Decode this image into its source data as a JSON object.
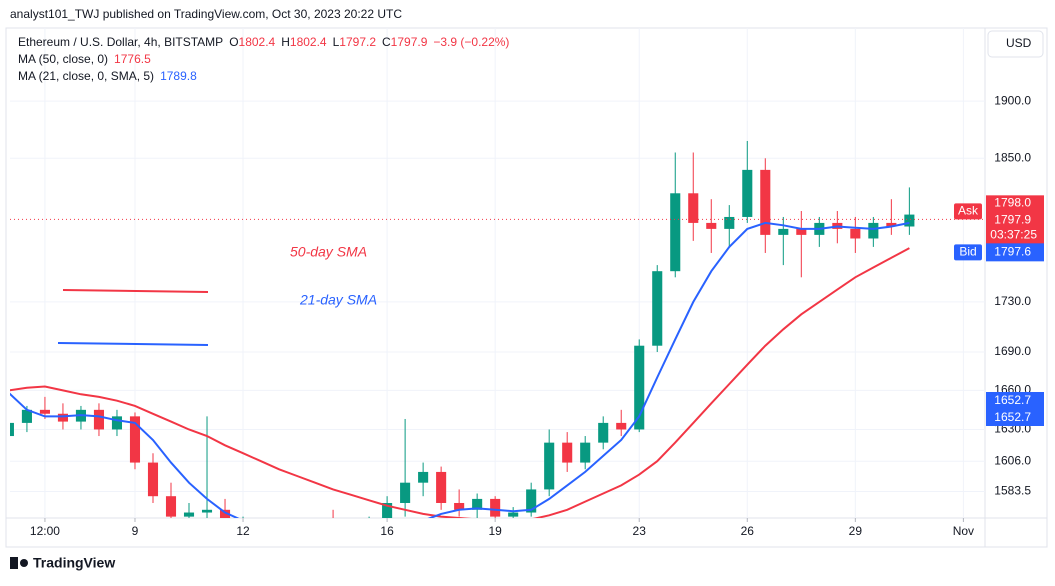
{
  "chart_data": {
    "type": "candlestick",
    "published": "analyst101_TWJ published on TradingView.com, Oct 30, 2023 20:22 UTC",
    "title": "Ethereum / U.S. Dollar, 4h, BITSTAMP",
    "ohlc": [
      {
        "label": "O",
        "value": "1802.4"
      },
      {
        "label": "H",
        "value": "1802.4"
      },
      {
        "label": "L",
        "value": "1797.2"
      },
      {
        "label": "C",
        "value": "1797.9"
      }
    ],
    "change": "−3.9 (−0.22%)",
    "currency": "USD",
    "footer": "TradingView",
    "annotations": [
      {
        "text": "50-day SMA",
        "color": "#f23645"
      },
      {
        "text": "21-day SMA",
        "color": "#2962ff"
      }
    ],
    "log": true,
    "grid": true,
    "up_color": "#089981",
    "down_color": "#f23645",
    "xlim": [
      5.53,
      32.6
    ],
    "xticks": [
      {
        "value": 6.5,
        "label": "12:00"
      },
      9,
      12,
      16,
      19,
      23,
      26,
      29,
      {
        "value": 32,
        "label": "Nov"
      }
    ],
    "ylim": [
      1564,
      1966
    ],
    "yticks": [
      {
        "value": 1900,
        "label": "1900.0"
      },
      {
        "value": 1850,
        "label": "1850.0"
      },
      {
        "value": 1730,
        "label": "1730.0"
      },
      {
        "value": 1690,
        "label": "1690.0"
      },
      {
        "value": 1660,
        "label": "1660.0"
      },
      {
        "value": 1630,
        "label": "1630.0"
      },
      {
        "value": 1606,
        "label": "1606.0"
      },
      1583.5
    ],
    "price_tags": {
      "ask": {
        "name": "Ask",
        "value": 1798,
        "label": "1798.0"
      },
      "last": "1797.9",
      "countdown": "03:37:25",
      "bid": {
        "name": "Bid",
        "label": "1797.6"
      },
      "ma_tags": [
        "1652.7",
        "1652.7"
      ]
    },
    "x": [
      5.5,
      6,
      6.5,
      7,
      7.5,
      8,
      8.5,
      9,
      9.5,
      10,
      10.5,
      11,
      11.5,
      12,
      12.5,
      13,
      13.5,
      14,
      14.5,
      15,
      15.5,
      16,
      16.5,
      17,
      17.5,
      18,
      18.5,
      19,
      19.5,
      20,
      20.5,
      21,
      21.5,
      22,
      22.5,
      23,
      23.5,
      24,
      24.5,
      25,
      25.5,
      26,
      26.5,
      27,
      27.5,
      28,
      28.5,
      29,
      29.5,
      30,
      30.5
    ],
    "open": [
      1625,
      1635,
      1645,
      1642,
      1636,
      1645,
      1630,
      1640,
      1605,
      1580,
      1565,
      1568,
      1570,
      1555,
      1558,
      1545,
      1550,
      1548,
      1555,
      1552,
      1556,
      1560,
      1575,
      1590,
      1598,
      1575,
      1570,
      1578,
      1565,
      1568,
      1585,
      1620,
      1605,
      1620,
      1635,
      1630,
      1695,
      1755,
      1820,
      1795,
      1790,
      1800,
      1840,
      1785,
      1790,
      1785,
      1795,
      1790,
      1782,
      1795,
      1792
    ],
    "high": [
      1640,
      1648,
      1655,
      1650,
      1648,
      1650,
      1645,
      1643,
      1612,
      1590,
      1575,
      1640,
      1578,
      1565,
      1562,
      1555,
      1558,
      1560,
      1570,
      1558,
      1565,
      1580,
      1638,
      1605,
      1602,
      1585,
      1582,
      1580,
      1572,
      1590,
      1630,
      1628,
      1625,
      1640,
      1645,
      1700,
      1760,
      1855,
      1855,
      1815,
      1810,
      1865,
      1850,
      1800,
      1805,
      1800,
      1805,
      1800,
      1800,
      1815,
      1825
    ],
    "low": [
      1612,
      1628,
      1638,
      1630,
      1630,
      1625,
      1625,
      1600,
      1575,
      1560,
      1555,
      1560,
      1550,
      1545,
      1540,
      1538,
      1542,
      1545,
      1550,
      1545,
      1550,
      1555,
      1565,
      1580,
      1570,
      1565,
      1562,
      1560,
      1558,
      1565,
      1580,
      1598,
      1600,
      1615,
      1625,
      1628,
      1690,
      1750,
      1780,
      1770,
      1775,
      1795,
      1770,
      1760,
      1750,
      1775,
      1778,
      1770,
      1775,
      1785,
      1785
    ],
    "close": [
      1635,
      1645,
      1642,
      1636,
      1645,
      1630,
      1640,
      1605,
      1580,
      1565,
      1568,
      1570,
      1555,
      1558,
      1545,
      1550,
      1548,
      1555,
      1552,
      1556,
      1560,
      1575,
      1590,
      1598,
      1575,
      1570,
      1578,
      1565,
      1568,
      1585,
      1620,
      1605,
      1620,
      1635,
      1630,
      1695,
      1755,
      1820,
      1795,
      1790,
      1800,
      1840,
      1785,
      1790,
      1785,
      1795,
      1790,
      1782,
      1795,
      1792,
      1802
    ],
    "series": [
      {
        "name": "MA (50, close, 0)",
        "last_value": 1776.5,
        "color": "#f23645",
        "values": [
          1660,
          1662,
          1663,
          1660,
          1657,
          1655,
          1652,
          1648,
          1642,
          1636,
          1630,
          1625,
          1618,
          1612,
          1606,
          1600,
          1595,
          1590,
          1585,
          1581,
          1577,
          1573,
          1570,
          1567,
          1565,
          1564,
          1563,
          1562,
          1562,
          1563,
          1566,
          1570,
          1576,
          1582,
          1588,
          1596,
          1606,
          1620,
          1635,
          1650,
          1665,
          1680,
          1695,
          1708,
          1720,
          1730,
          1740,
          1750,
          1758,
          1766,
          1774
        ]
      },
      {
        "name": "MA (21, close, 0, SMA, 5)",
        "last_value": 1789.8,
        "color": "#2962ff",
        "values": [
          1658,
          1645,
          1640,
          1640,
          1641,
          1640,
          1637,
          1635,
          1622,
          1605,
          1590,
          1578,
          1568,
          1562,
          1556,
          1552,
          1550,
          1549,
          1550,
          1551,
          1553,
          1555,
          1558,
          1562,
          1567,
          1570,
          1571,
          1570,
          1569,
          1570,
          1578,
          1588,
          1598,
          1610,
          1622,
          1640,
          1670,
          1700,
          1730,
          1755,
          1775,
          1790,
          1795,
          1793,
          1790,
          1790,
          1792,
          1791,
          1790,
          1792,
          1795
        ]
      }
    ]
  }
}
